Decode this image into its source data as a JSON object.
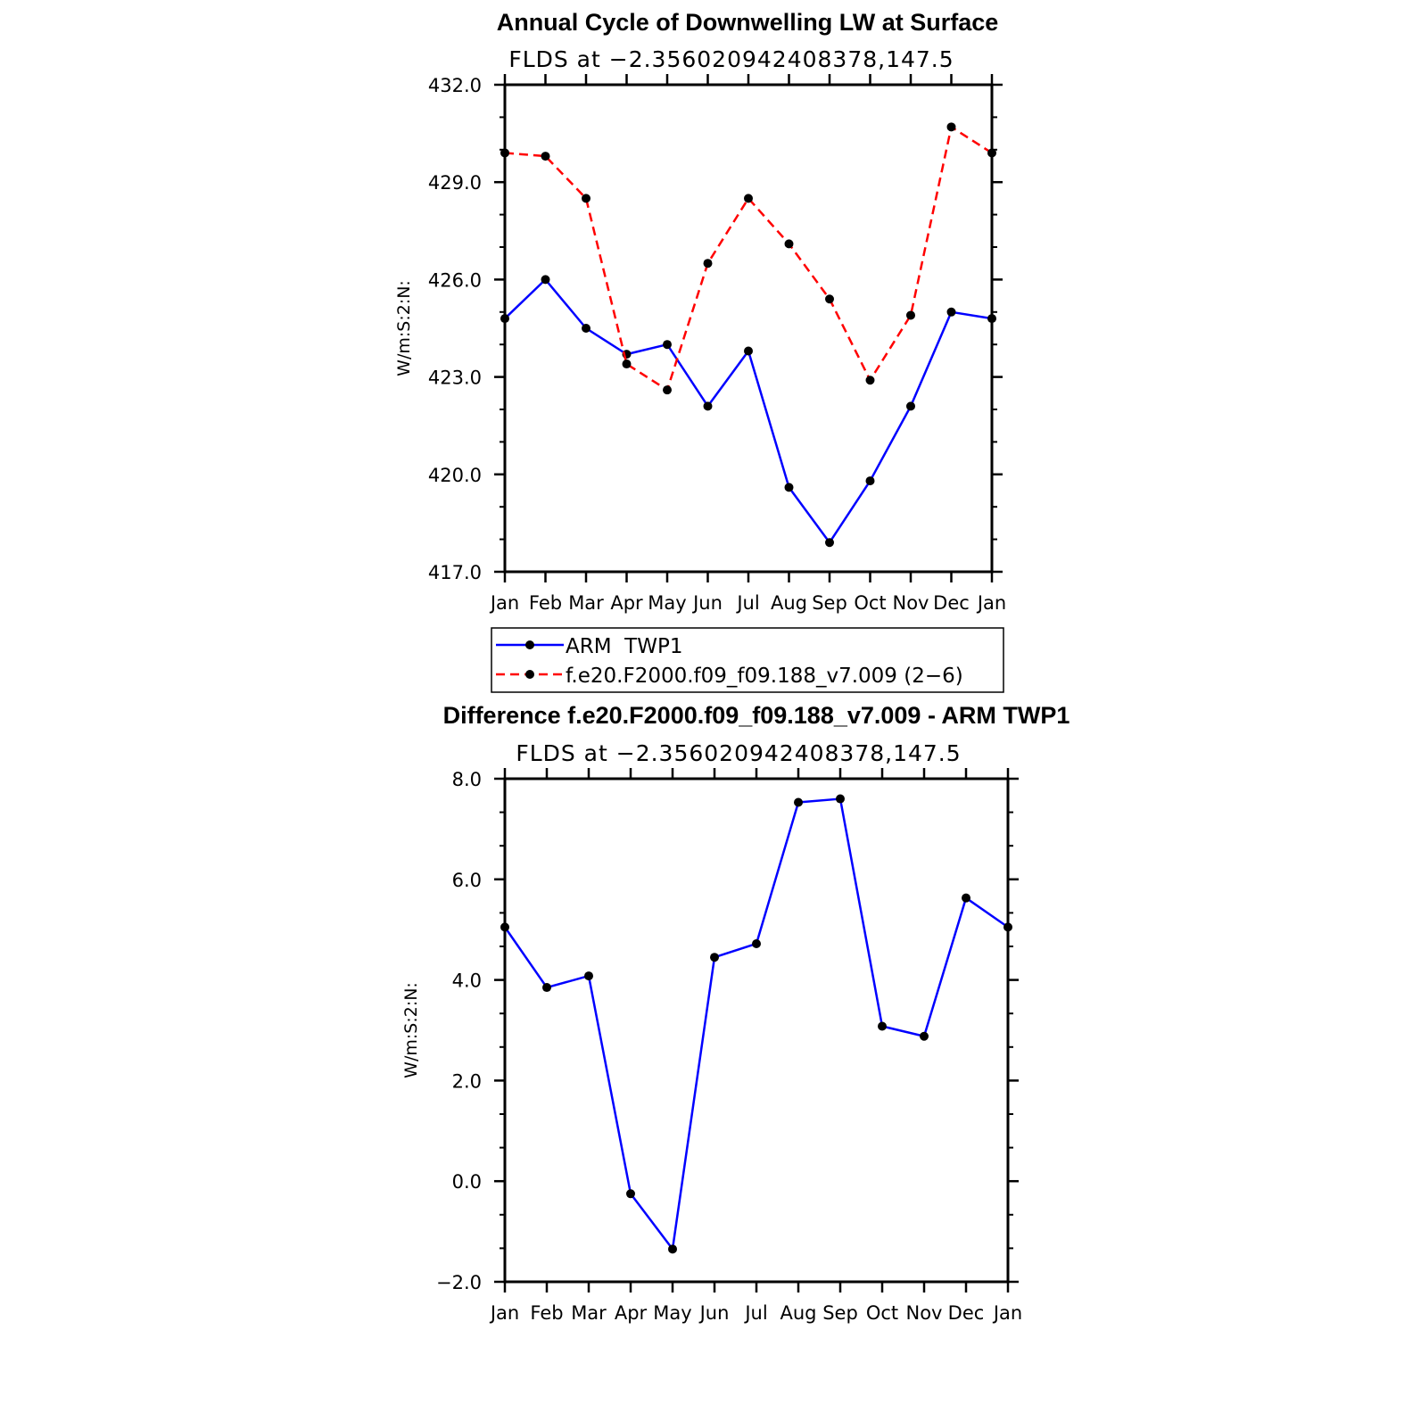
{
  "chart_data": [
    {
      "type": "line",
      "title": "Annual Cycle of Downwelling LW at Surface",
      "subtitle": "FLDS at −2.356020942408378,147.5",
      "ylabel": "W/m:S:2:N:",
      "ylim": [
        417.0,
        432.0
      ],
      "yticks": [
        "417.0",
        "420.0",
        "423.0",
        "426.0",
        "429.0",
        "432.0"
      ],
      "categories": [
        "Jan",
        "Feb",
        "Mar",
        "Apr",
        "May",
        "Jun",
        "Jul",
        "Aug",
        "Sep",
        "Oct",
        "Nov",
        "Dec",
        "Jan"
      ],
      "series": [
        {
          "name": "ARM  TWP1",
          "color": "#0000ff",
          "dash": "solid",
          "values": [
            424.8,
            426.0,
            424.5,
            423.7,
            424.0,
            422.1,
            423.8,
            419.6,
            417.9,
            419.8,
            422.1,
            425.0,
            424.8
          ]
        },
        {
          "name": "f.e20.F2000.f09_f09.188_v7.009 (2−6)",
          "color": "#ff0000",
          "dash": "dashed",
          "values": [
            429.9,
            429.8,
            428.5,
            423.4,
            422.6,
            426.5,
            428.5,
            427.1,
            425.4,
            422.9,
            424.9,
            430.7,
            429.9
          ]
        }
      ],
      "legend": "below"
    },
    {
      "type": "line",
      "title": "Difference f.e20.F2000.f09_f09.188_v7.009 - ARM TWP1",
      "subtitle": "FLDS at −2.356020942408378,147.5",
      "ylabel": "W/m:S:2:N:",
      "ylim": [
        -2.0,
        8.0
      ],
      "yticks": [
        "−2.0",
        "0.0",
        "2.0",
        "4.0",
        "6.0",
        "8.0"
      ],
      "categories": [
        "Jan",
        "Feb",
        "Mar",
        "Apr",
        "May",
        "Jun",
        "Jul",
        "Aug",
        "Sep",
        "Oct",
        "Nov",
        "Dec",
        "Jan"
      ],
      "series": [
        {
          "color": "#0000ff",
          "dash": "solid",
          "values": [
            5.05,
            3.85,
            4.08,
            -0.25,
            -1.35,
            4.45,
            4.72,
            7.53,
            7.6,
            3.08,
            2.88,
            5.63,
            5.05
          ]
        }
      ]
    }
  ]
}
